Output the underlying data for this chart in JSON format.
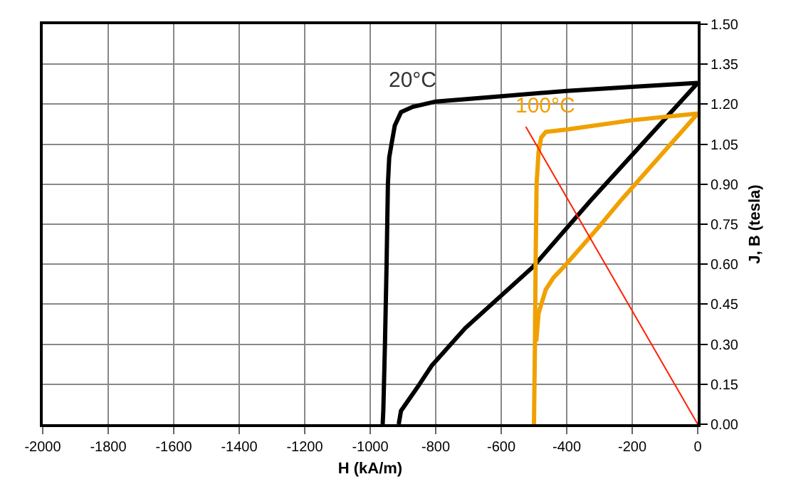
{
  "chart_data": {
    "type": "line",
    "xlabel": "H (kA/m)",
    "ylabel": "J, B (tesla)",
    "xlim": [
      -2000,
      0
    ],
    "xticks": [
      -2000,
      -1800,
      -1600,
      -1400,
      -1200,
      -1000,
      -800,
      -600,
      -400,
      -200,
      0
    ],
    "ylim": [
      0,
      1.5
    ],
    "yticks": [
      {
        "value": 0,
        "label": "0.00"
      },
      {
        "value": 0.15,
        "label": "0.15"
      },
      {
        "value": 0.3,
        "label": "0.30"
      },
      {
        "value": 0.45,
        "label": "0.45"
      },
      {
        "value": 0.6,
        "label": "0.60"
      },
      {
        "value": 0.75,
        "label": "0.75"
      },
      {
        "value": 0.9,
        "label": "0.90"
      },
      {
        "value": 1.05,
        "label": "1.05"
      },
      {
        "value": 1.2,
        "label": "1.20"
      },
      {
        "value": 1.35,
        "label": "1.35"
      },
      {
        "value": 1.5,
        "label": "1.50"
      }
    ],
    "grid": true,
    "marker": "none",
    "line_style": "solid",
    "series": [
      {
        "name": "20°C",
        "color": "#000000",
        "x": [
          0,
          -200,
          -400,
          -600,
          -800,
          -870,
          -906,
          -925,
          -935,
          -942,
          -946,
          -950,
          -955,
          -960,
          -962
        ],
        "values": [
          1.28,
          1.265,
          1.25,
          1.23,
          1.21,
          1.19,
          1.17,
          1.12,
          1.05,
          1.0,
          0.9,
          0.6,
          0.3,
          0.05,
          0
        ]
      },
      {
        "color": "#000000",
        "x": [
          0,
          -326,
          -503,
          -710,
          -812,
          -855,
          -906,
          -913
        ],
        "values": [
          1.28,
          0.84,
          0.59,
          0.36,
          0.22,
          0.14,
          0.05,
          0
        ]
      },
      {
        "name": "100°C",
        "color": "#f0a000",
        "x": [
          0,
          -200,
          -400,
          -464,
          -478,
          -486,
          -492,
          -495,
          -497,
          -500
        ],
        "values": [
          1.165,
          1.14,
          1.105,
          1.096,
          1.075,
          1.02,
          0.9,
          0.6,
          0.3,
          0
        ]
      },
      {
        "color": "#f0a000",
        "x": [
          0,
          -232,
          -304,
          -406,
          -440,
          -464,
          -486,
          -493
        ],
        "values": [
          1.165,
          0.843,
          0.737,
          0.594,
          0.55,
          0.505,
          0.416,
          0.31
        ]
      },
      {
        "color": "#ff2000",
        "x": [
          0,
          -525
        ],
        "values": [
          0,
          1.116
        ]
      }
    ]
  }
}
